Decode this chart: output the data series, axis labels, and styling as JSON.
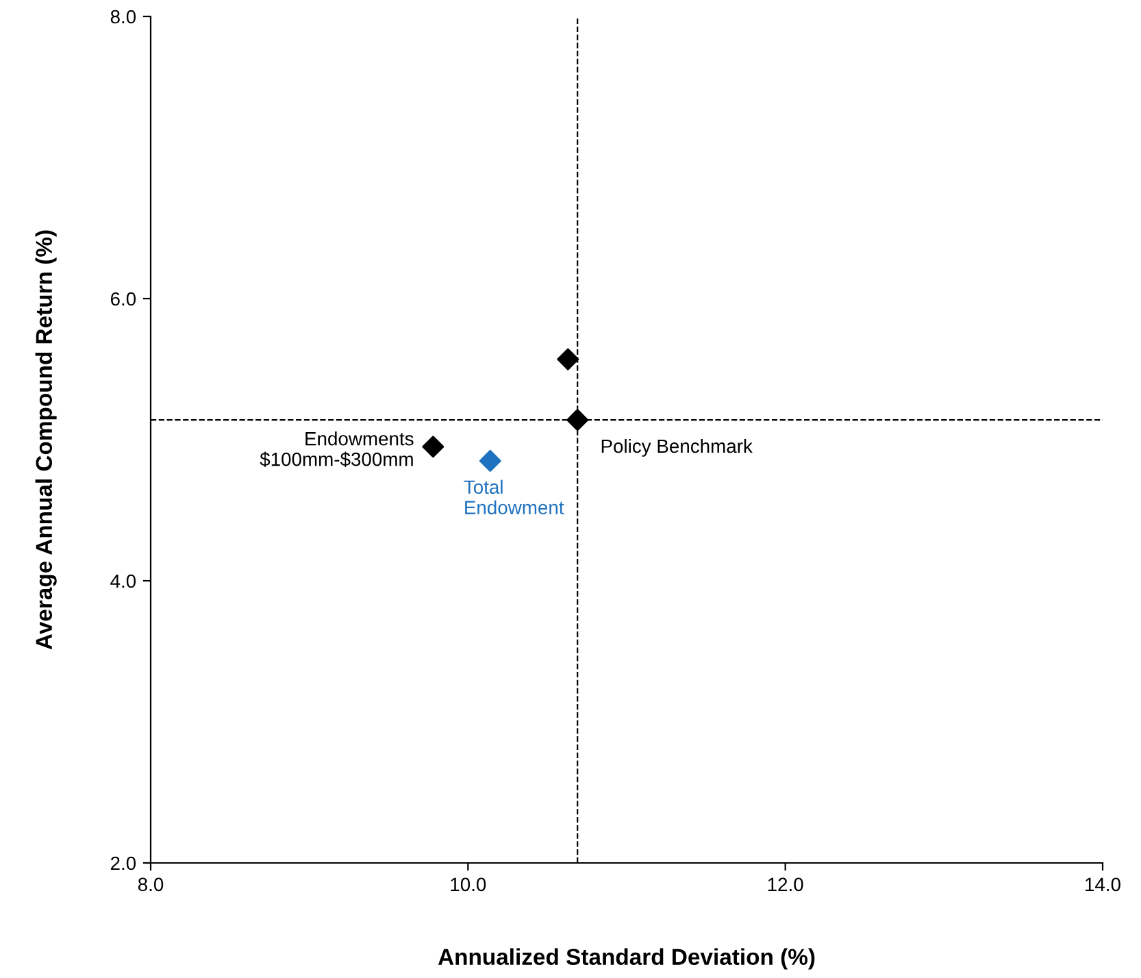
{
  "chart_data": {
    "type": "scatter",
    "xlabel": "Annualized Standard Deviation (%)",
    "ylabel": "Average Annual Compound Return (%)",
    "marker": "diamond",
    "grid": false,
    "xlim": [
      8.0,
      14.0
    ],
    "ylim": [
      2.0,
      8.0
    ],
    "xticks": [
      {
        "value": 8,
        "label": "8.0"
      },
      {
        "value": 10,
        "label": "10.0"
      },
      {
        "value": 12,
        "label": "12.0"
      },
      {
        "value": 14,
        "label": "14.0"
      }
    ],
    "yticks": [
      {
        "value": 2,
        "label": "2.0"
      },
      {
        "value": 4,
        "label": "4.0"
      },
      {
        "value": 6,
        "label": "6.0"
      },
      {
        "value": 8,
        "label": "8.0"
      }
    ],
    "series": [
      {
        "color": "#000000",
        "x": [
          9.78,
          10.63,
          10.69
        ],
        "values": [
          4.95,
          5.57,
          5.14
        ]
      },
      {
        "color": "#1f72c0",
        "x": [
          10.14
        ],
        "values": [
          4.85
        ]
      }
    ],
    "ref_lines": [
      {
        "axis": "x",
        "value": 10.69,
        "line_style": "dashed",
        "color": "#000000"
      },
      {
        "axis": "y",
        "value": 5.14,
        "line_style": "dashed",
        "color": "#000000"
      }
    ],
    "annotations": [
      {
        "text": "Endowments\n$100mm-$300mm",
        "x": 9.78,
        "y": 4.95
      },
      {
        "text": "Total\nEndowment",
        "x": 10.14,
        "y": 4.85
      },
      {
        "text": "Policy Benchmark",
        "x": 10.69,
        "y": 5.14
      }
    ]
  }
}
